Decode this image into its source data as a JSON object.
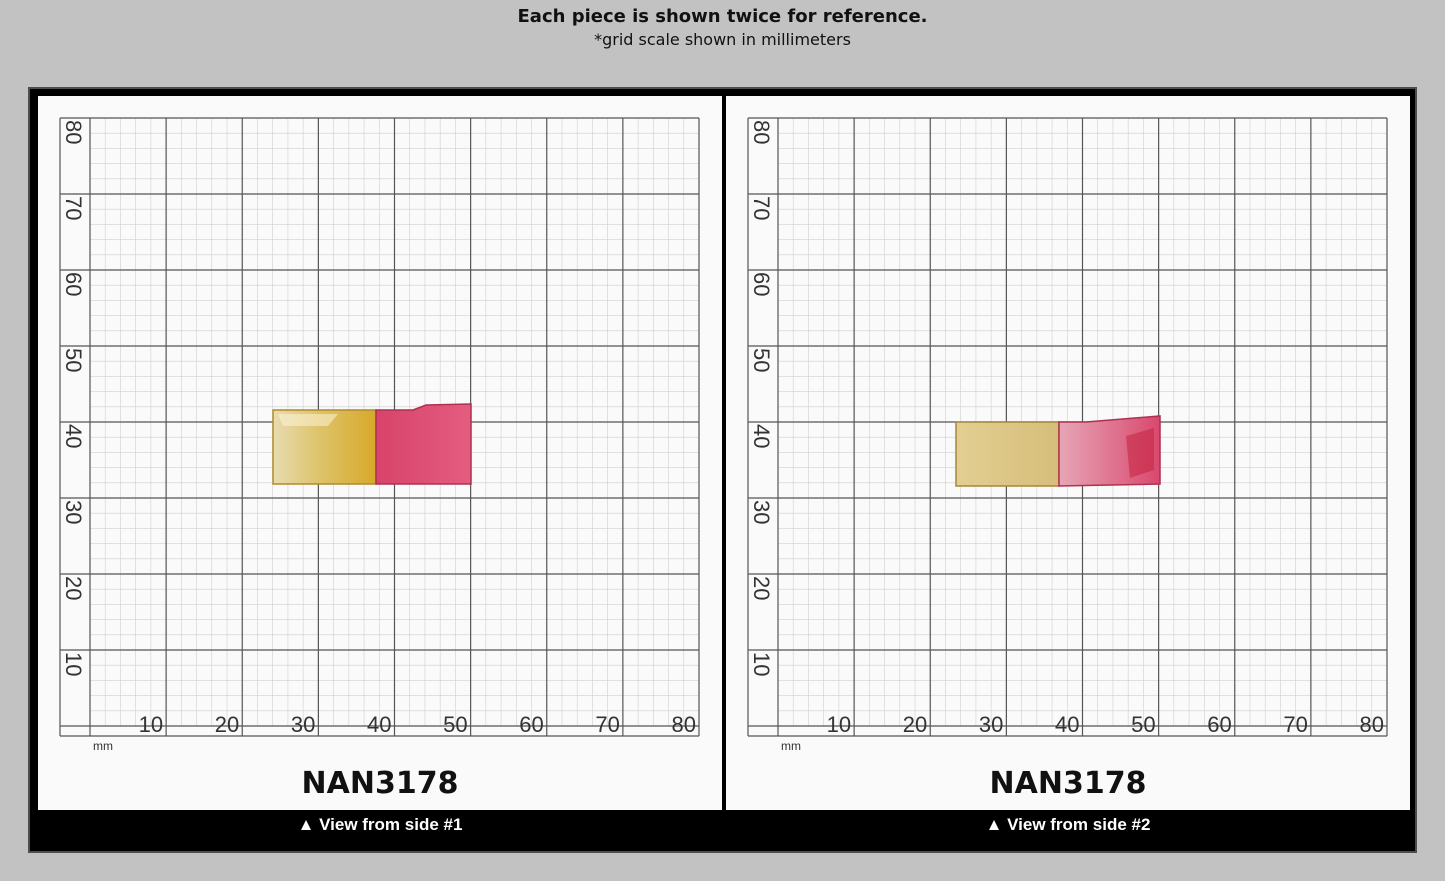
{
  "header": {
    "title": "Each piece is shown twice for reference.",
    "subtitle": "*grid scale shown in millimeters"
  },
  "panels": [
    {
      "id": "side-1",
      "grid": {
        "unit": "mm",
        "x_ticks": [
          "10",
          "20",
          "30",
          "40",
          "50",
          "60",
          "70",
          "80"
        ],
        "y_ticks": [
          "10",
          "20",
          "30",
          "40",
          "50",
          "60",
          "70",
          "80"
        ]
      },
      "item_label": "NAN3178",
      "caption": "▲ View from side #1",
      "colors": {
        "amber": "#d9b64a",
        "pink": "#d9486e"
      }
    },
    {
      "id": "side-2",
      "grid": {
        "unit": "mm",
        "x_ticks": [
          "10",
          "20",
          "30",
          "40",
          "50",
          "60",
          "70",
          "80"
        ],
        "y_ticks": [
          "10",
          "20",
          "30",
          "40",
          "50",
          "60",
          "70",
          "80"
        ]
      },
      "item_label": "NAN3178",
      "caption": "▲ View from side #2",
      "colors": {
        "amber": "#dcc27a",
        "pink": "#e07a94"
      }
    }
  ]
}
